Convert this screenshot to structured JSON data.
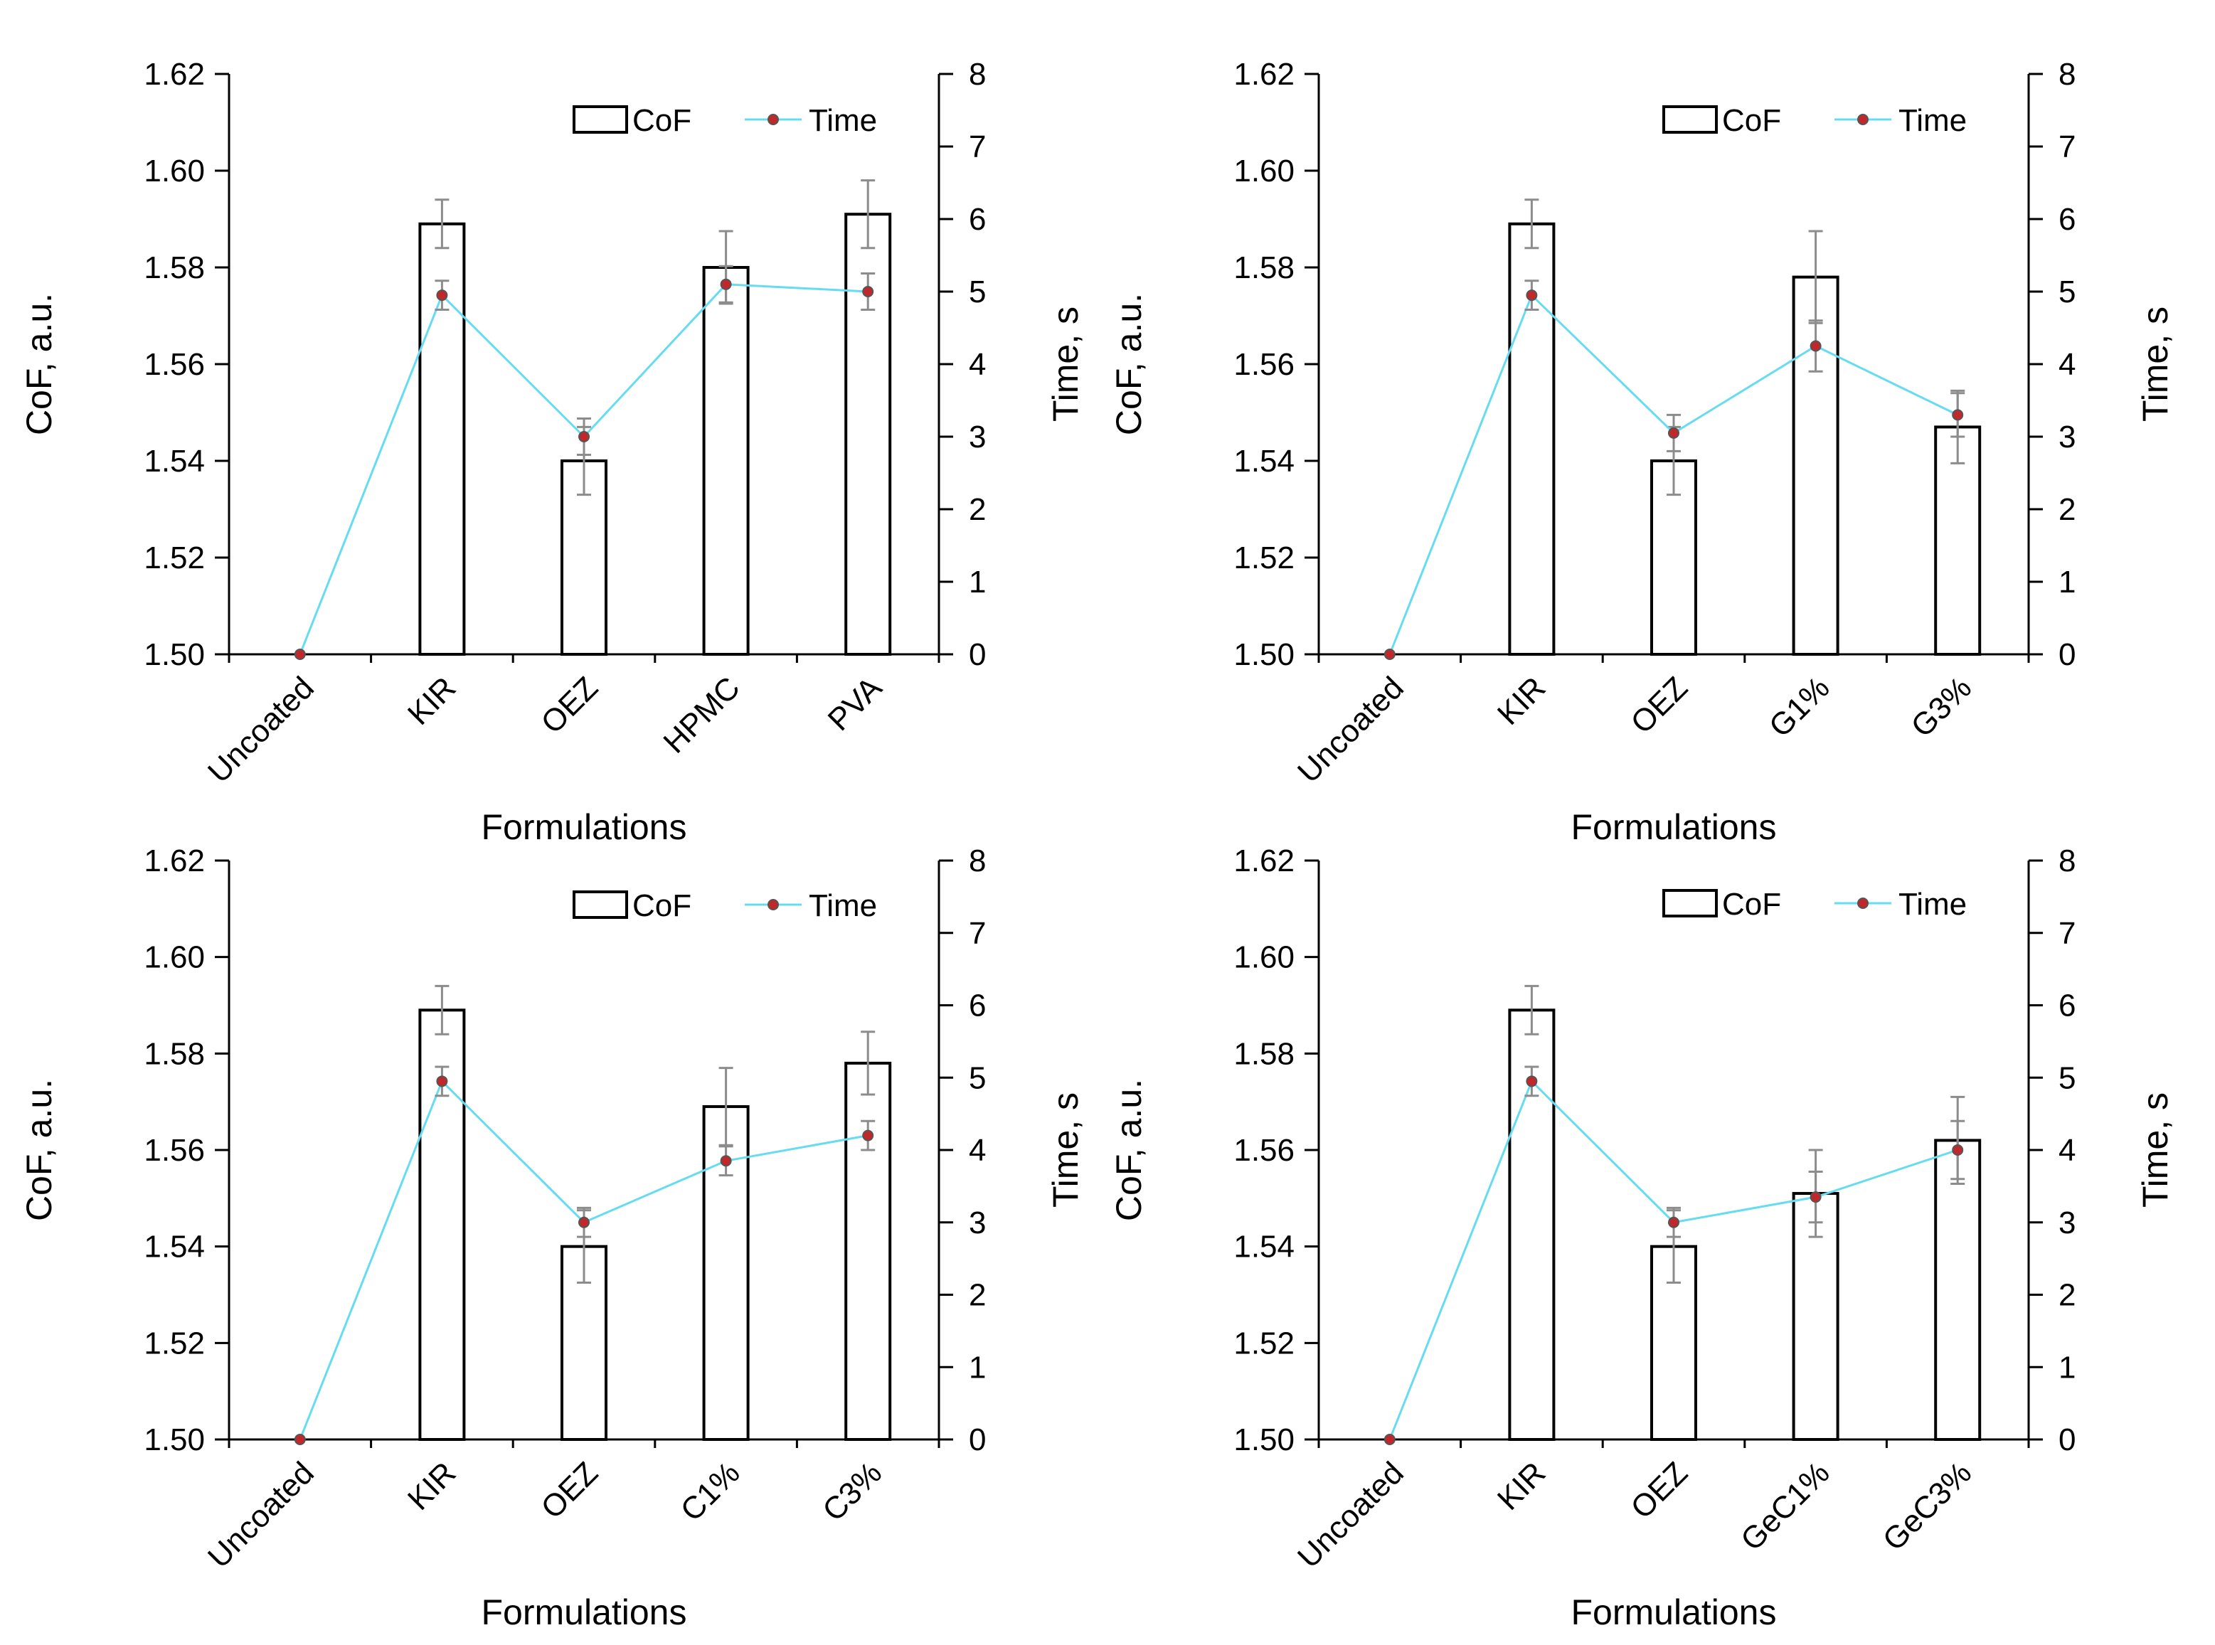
{
  "figure": {
    "colors": {
      "bar_fill": "#ffffff",
      "bar_stroke": "#000000",
      "axis": "#000000",
      "time_line": "#66dcf0",
      "time_marker": "#c0282c",
      "error_bar": "#8c8c8c"
    }
  },
  "chart_data": [
    {
      "type": "bar",
      "panel": "top-left",
      "title": "",
      "xlabel": "Formulations",
      "ylabel": "CoF, a.u.",
      "y2label": "Time, s",
      "ylim": [
        1.5,
        1.62
      ],
      "y2lim": [
        0,
        8
      ],
      "yticks": [
        "1.50",
        "1.52",
        "1.54",
        "1.56",
        "1.58",
        "1.60",
        "1.62"
      ],
      "y2ticks": [
        "0",
        "1",
        "2",
        "3",
        "4",
        "5",
        "6",
        "7",
        "8"
      ],
      "legend": [
        "CoF",
        "Time"
      ],
      "legend_position": "top-right",
      "categories": [
        "Uncoated",
        "KIR",
        "OEZ",
        "HPMC",
        "PVA"
      ],
      "series": [
        {
          "name": "CoF",
          "kind": "bar",
          "axis": "left",
          "values": [
            1.5,
            1.589,
            1.54,
            1.58,
            1.591
          ],
          "errors": [
            0,
            0.005,
            0.007,
            0.0075,
            0.007
          ]
        },
        {
          "name": "Time",
          "kind": "line",
          "axis": "right",
          "values": [
            0,
            4.95,
            3.0,
            5.1,
            5.0
          ],
          "errors": [
            0,
            0.2,
            0.25,
            0.25,
            0.25
          ]
        }
      ]
    },
    {
      "type": "bar",
      "panel": "top-right",
      "title": "",
      "xlabel": "Formulations",
      "ylabel": "CoF, a.u.",
      "y2label": "Time, s",
      "ylim": [
        1.5,
        1.62
      ],
      "y2lim": [
        0,
        8
      ],
      "yticks": [
        "1.50",
        "1.52",
        "1.54",
        "1.56",
        "1.58",
        "1.60",
        "1.62"
      ],
      "y2ticks": [
        "0",
        "1",
        "2",
        "3",
        "4",
        "5",
        "6",
        "7",
        "8"
      ],
      "legend": [
        "CoF",
        "Time"
      ],
      "legend_position": "top-right",
      "categories": [
        "Uncoated",
        "KIR",
        "OEZ",
        "G1%",
        "G3%"
      ],
      "series": [
        {
          "name": "CoF",
          "kind": "bar",
          "axis": "left",
          "values": [
            1.5,
            1.589,
            1.54,
            1.578,
            1.547
          ],
          "errors": [
            0,
            0.005,
            0.007,
            0.0095,
            0.0075
          ]
        },
        {
          "name": "Time",
          "kind": "line",
          "axis": "right",
          "values": [
            0,
            4.95,
            3.05,
            4.25,
            3.3
          ],
          "errors": [
            0,
            0.2,
            0.25,
            0.35,
            0.3
          ]
        }
      ]
    },
    {
      "type": "bar",
      "panel": "bottom-left",
      "title": "",
      "xlabel": "Formulations",
      "ylabel": "CoF, a.u.",
      "y2label": "Time, s",
      "ylim": [
        1.5,
        1.62
      ],
      "y2lim": [
        0,
        8
      ],
      "yticks": [
        "1.50",
        "1.52",
        "1.54",
        "1.56",
        "1.58",
        "1.60",
        "1.62"
      ],
      "y2ticks": [
        "0",
        "1",
        "2",
        "3",
        "4",
        "5",
        "6",
        "7",
        "8"
      ],
      "legend": [
        "CoF",
        "Time"
      ],
      "legend_position": "top-right",
      "categories": [
        "Uncoated",
        "KIR",
        "OEZ",
        "C1%",
        "C3%"
      ],
      "series": [
        {
          "name": "CoF",
          "kind": "bar",
          "axis": "left",
          "values": [
            1.5,
            1.589,
            1.54,
            1.569,
            1.578
          ],
          "errors": [
            0,
            0.005,
            0.0075,
            0.008,
            0.0065
          ]
        },
        {
          "name": "Time",
          "kind": "line",
          "axis": "right",
          "values": [
            0,
            4.95,
            3.0,
            3.85,
            4.2
          ],
          "errors": [
            0,
            0.2,
            0.2,
            0.2,
            0.2
          ]
        }
      ]
    },
    {
      "type": "bar",
      "panel": "bottom-right",
      "title": "",
      "xlabel": "Formulations",
      "ylabel": "CoF, a.u.",
      "y2label": "Time, s",
      "ylim": [
        1.5,
        1.62
      ],
      "y2lim": [
        0,
        8
      ],
      "yticks": [
        "1.50",
        "1.52",
        "1.54",
        "1.56",
        "1.58",
        "1.60",
        "1.62"
      ],
      "y2ticks": [
        "0",
        "1",
        "2",
        "3",
        "4",
        "5",
        "6",
        "7",
        "8"
      ],
      "legend": [
        "CoF",
        "Time"
      ],
      "legend_position": "top-right",
      "categories": [
        "Uncoated",
        "KIR",
        "OEZ",
        "GeC1%",
        "GeC3%"
      ],
      "series": [
        {
          "name": "CoF",
          "kind": "bar",
          "axis": "left",
          "values": [
            1.5,
            1.589,
            1.54,
            1.551,
            1.562
          ],
          "errors": [
            0,
            0.005,
            0.0075,
            0.009,
            0.009
          ]
        },
        {
          "name": "Time",
          "kind": "line",
          "axis": "right",
          "values": [
            0,
            4.95,
            3.0,
            3.35,
            4.0
          ],
          "errors": [
            0,
            0.2,
            0.2,
            0.35,
            0.4
          ]
        }
      ]
    }
  ]
}
